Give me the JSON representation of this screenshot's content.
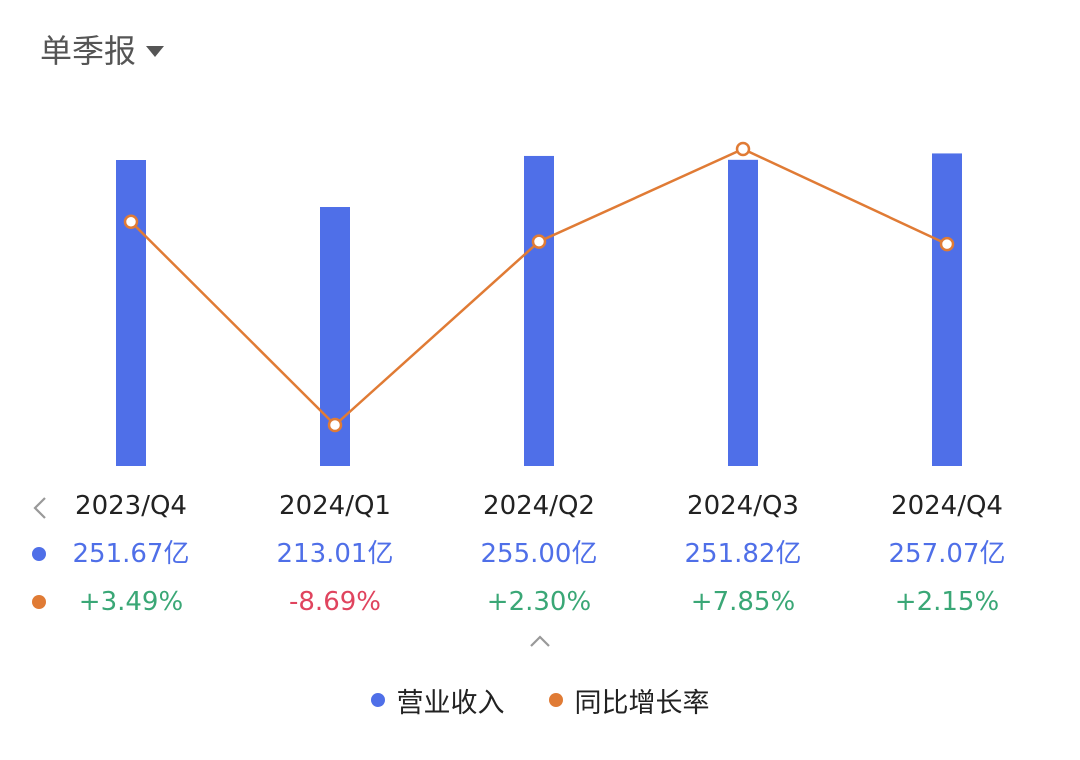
{
  "header": {
    "period_label": "单季报",
    "dropdown_icon": "caret-down-icon"
  },
  "colors": {
    "revenue": "#4f6fe8",
    "growth": "#e07b35",
    "positive": "#3aa776",
    "negative": "#e0445e"
  },
  "chart_data": {
    "type": "bar",
    "categories": [
      "2023/Q4",
      "2024/Q1",
      "2024/Q2",
      "2024/Q3",
      "2024/Q4"
    ],
    "series": [
      {
        "name": "营业收入",
        "type": "bar",
        "values": [
          251.67,
          213.01,
          255.0,
          251.82,
          257.07
        ],
        "labels": [
          "251.67亿",
          "213.01亿",
          "255.00亿",
          "251.82亿",
          "257.07亿"
        ]
      },
      {
        "name": "同比增长率",
        "type": "line",
        "values": [
          3.49,
          -8.69,
          2.3,
          7.85,
          2.15
        ],
        "labels": [
          "+3.49%",
          "-8.69%",
          "+2.30%",
          "+7.85%",
          "+2.15%"
        ]
      }
    ],
    "grid": false,
    "legend": "bottom-center"
  },
  "nav": {
    "prev_icon": "chevron-left-icon",
    "collapse_icon": "chevron-up-icon"
  }
}
